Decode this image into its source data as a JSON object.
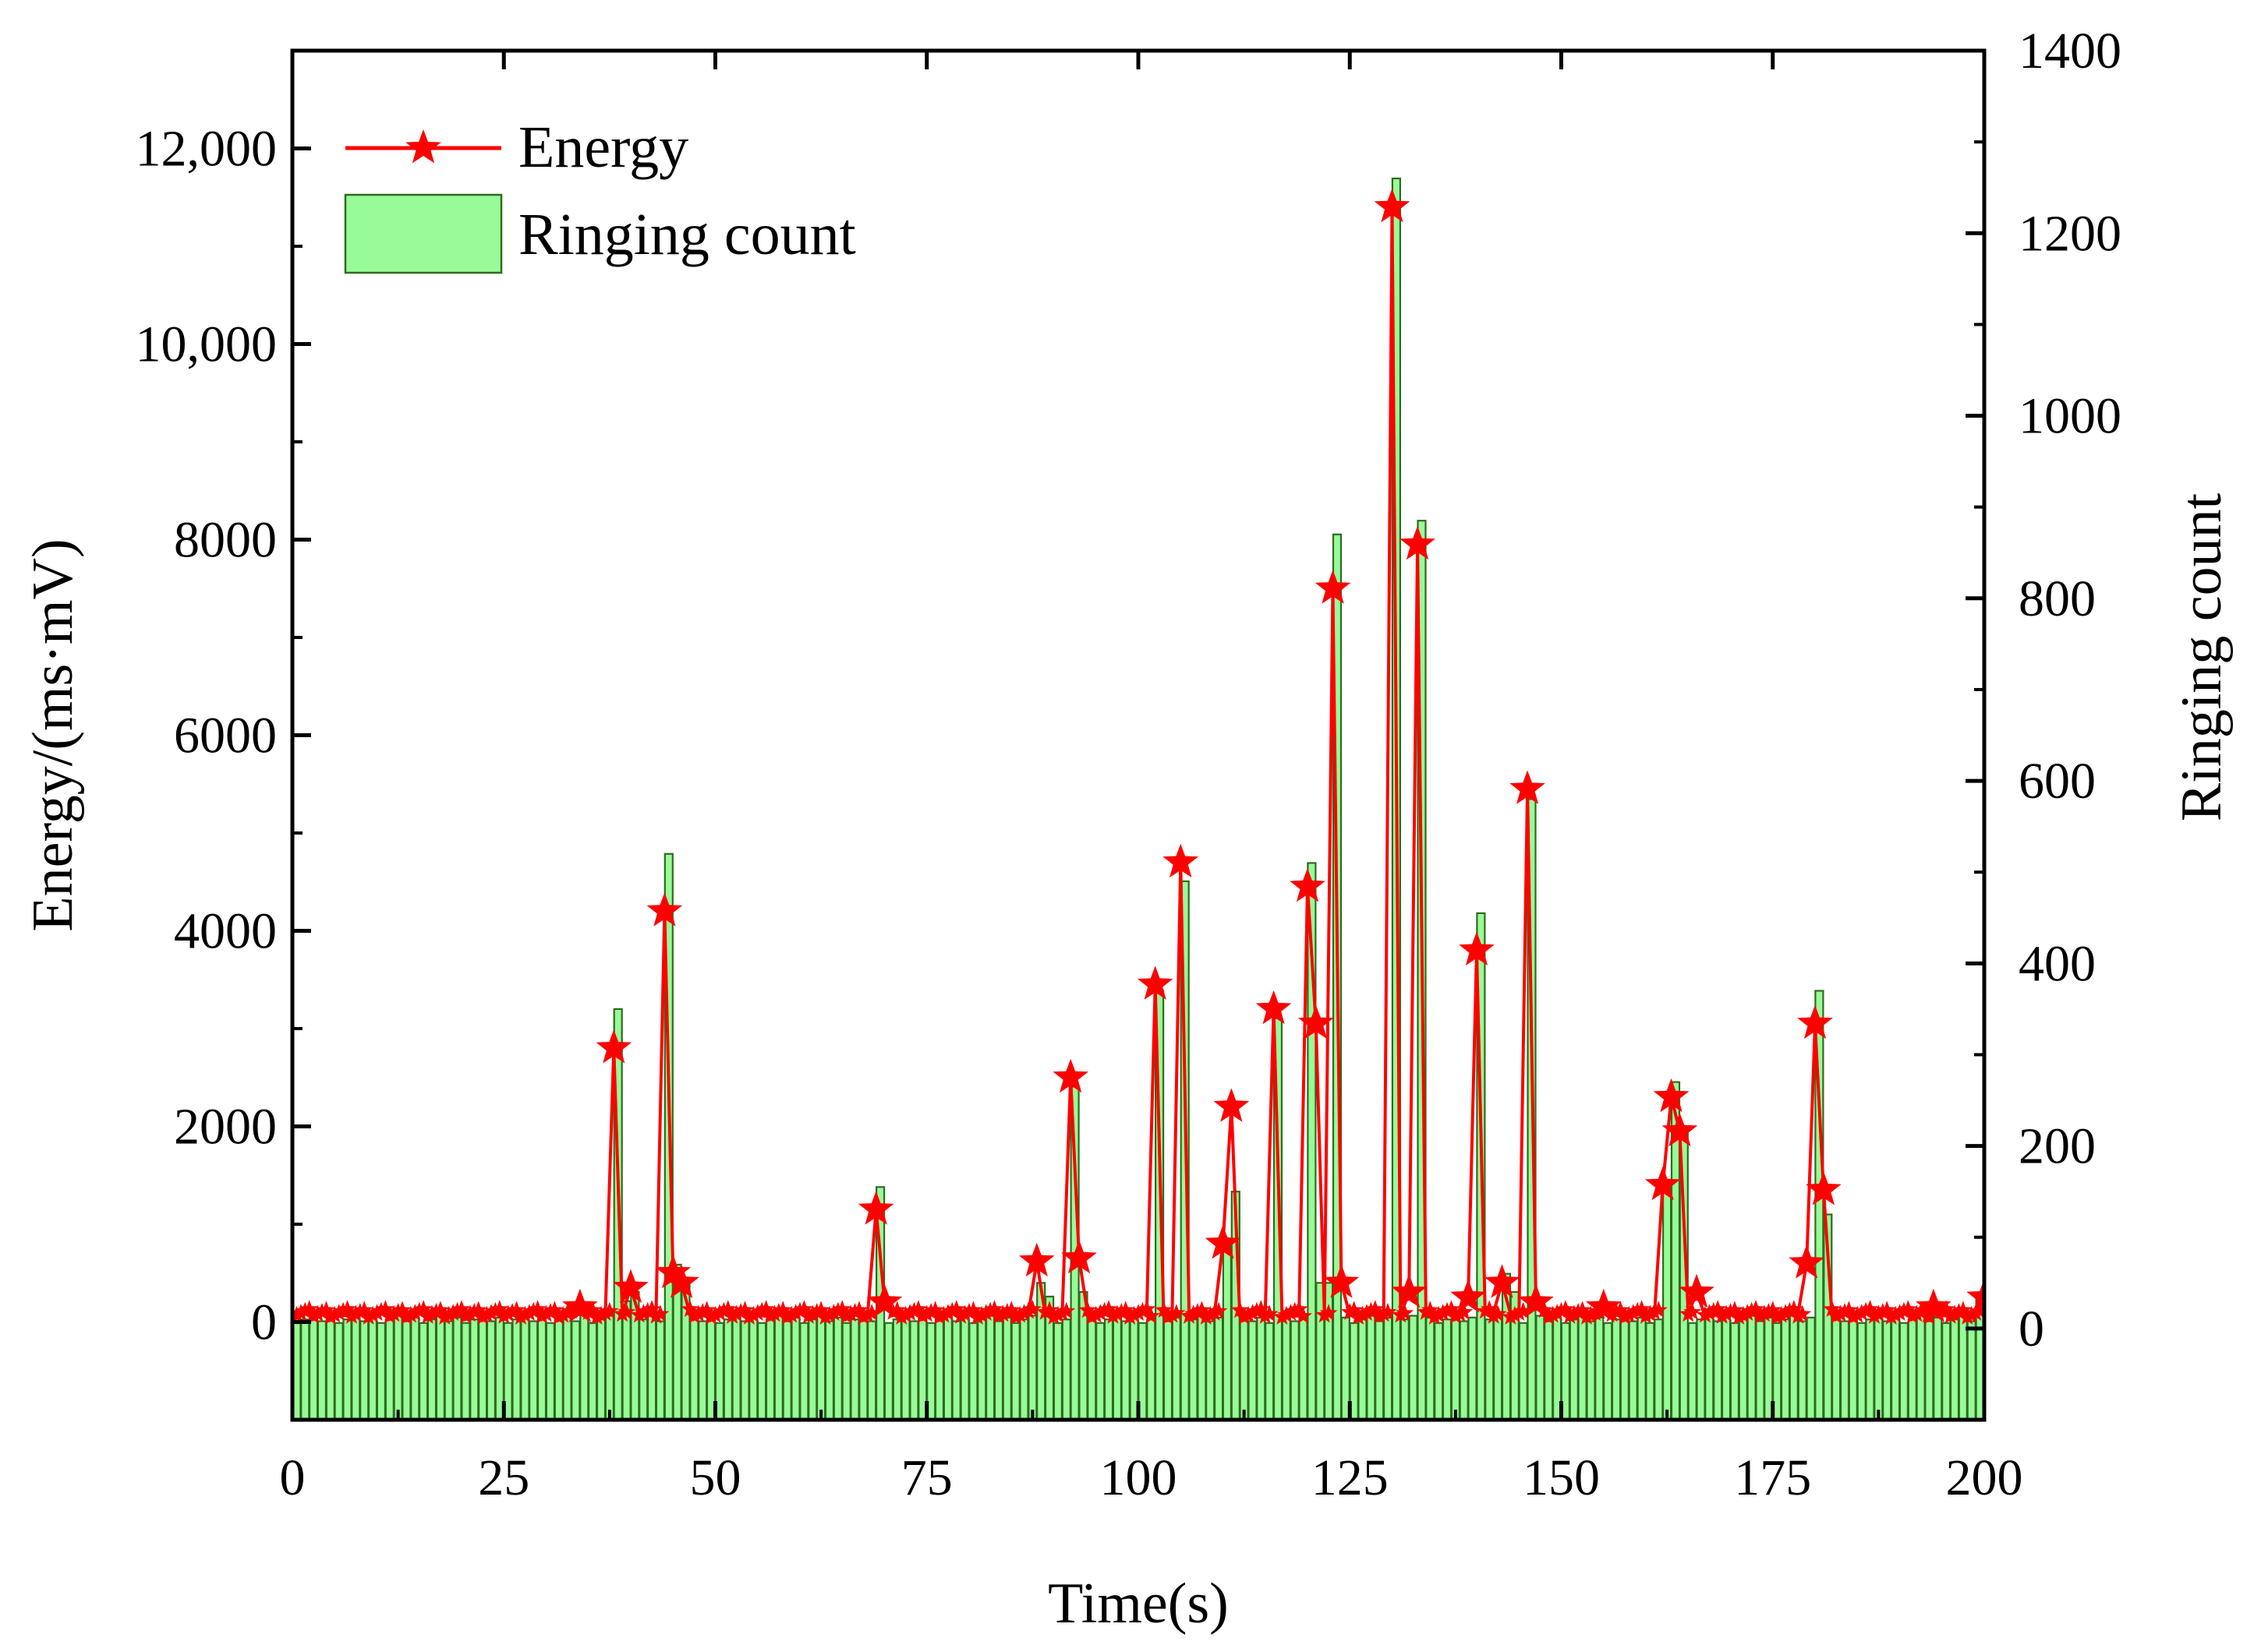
{
  "chart_data": {
    "type": "bar+line",
    "xlabel": "Time(s)",
    "ylabel_left": "Energy/(ms·mV)",
    "ylabel_right": "Ringing count",
    "xlim": [
      0,
      200
    ],
    "ylim_left": [
      -1000,
      13000
    ],
    "ylim_right": [
      -100,
      1400
    ],
    "x_ticks": [
      0,
      25,
      50,
      75,
      100,
      125,
      150,
      175,
      200
    ],
    "x_tick_labels": [
      "0",
      "25",
      "50",
      "75",
      "100",
      "125",
      "150",
      "175",
      "200"
    ],
    "y_left_ticks": [
      0,
      2000,
      4000,
      6000,
      8000,
      10000,
      12000
    ],
    "y_left_tick_labels": [
      "0",
      "2000",
      "4000",
      "6000",
      "8000",
      "10,000",
      "12,000"
    ],
    "y_right_ticks": [
      0,
      200,
      400,
      600,
      800,
      1000,
      1200,
      1400
    ],
    "y_right_tick_labels": [
      "0",
      "200",
      "400",
      "600",
      "800",
      "1000",
      "1200",
      "1400"
    ],
    "legend": {
      "position": "top-left",
      "entries": [
        "Energy",
        "Ringing count"
      ]
    },
    "colors": {
      "energy": "#ff0000",
      "bar_fill": "#98fb98",
      "bar_edge": "#2e6b1e",
      "axis": "#000000"
    },
    "baseline": {
      "energy": 80,
      "ringing": 10
    },
    "series": [
      {
        "name": "Energy",
        "axis": "left",
        "style": "line-star",
        "peaks": [
          {
            "x": 34,
            "y": 150
          },
          {
            "x": 38,
            "y": 2800
          },
          {
            "x": 40,
            "y": 350
          },
          {
            "x": 44,
            "y": 4200
          },
          {
            "x": 45,
            "y": 500
          },
          {
            "x": 46,
            "y": 400
          },
          {
            "x": 69,
            "y": 1150
          },
          {
            "x": 70,
            "y": 200
          },
          {
            "x": 88,
            "y": 620
          },
          {
            "x": 92,
            "y": 2500
          },
          {
            "x": 93,
            "y": 650
          },
          {
            "x": 102,
            "y": 3450
          },
          {
            "x": 105,
            "y": 4700
          },
          {
            "x": 110,
            "y": 800
          },
          {
            "x": 111,
            "y": 2200
          },
          {
            "x": 116,
            "y": 3200
          },
          {
            "x": 120,
            "y": 4450
          },
          {
            "x": 121,
            "y": 3050
          },
          {
            "x": 123,
            "y": 7500
          },
          {
            "x": 124,
            "y": 400
          },
          {
            "x": 130,
            "y": 11400
          },
          {
            "x": 132,
            "y": 300
          },
          {
            "x": 133,
            "y": 7950
          },
          {
            "x": 139,
            "y": 250
          },
          {
            "x": 140,
            "y": 3800
          },
          {
            "x": 143,
            "y": 400
          },
          {
            "x": 146,
            "y": 5450
          },
          {
            "x": 147,
            "y": 200
          },
          {
            "x": 155,
            "y": 150
          },
          {
            "x": 162,
            "y": 1400
          },
          {
            "x": 163,
            "y": 2300
          },
          {
            "x": 164,
            "y": 1950
          },
          {
            "x": 166,
            "y": 300
          },
          {
            "x": 179,
            "y": 600
          },
          {
            "x": 180,
            "y": 3050
          },
          {
            "x": 181,
            "y": 1350
          },
          {
            "x": 194,
            "y": 150
          },
          {
            "x": 200,
            "y": 250
          }
        ]
      },
      {
        "name": "Ringing count",
        "axis": "right",
        "style": "bar",
        "peaks": [
          {
            "x": 34,
            "y": 25
          },
          {
            "x": 38,
            "y": 350
          },
          {
            "x": 39,
            "y": 30
          },
          {
            "x": 40,
            "y": 40
          },
          {
            "x": 44,
            "y": 520
          },
          {
            "x": 45,
            "y": 70
          },
          {
            "x": 46,
            "y": 55
          },
          {
            "x": 69,
            "y": 155
          },
          {
            "x": 88,
            "y": 50
          },
          {
            "x": 89,
            "y": 35
          },
          {
            "x": 92,
            "y": 265
          },
          {
            "x": 93,
            "y": 40
          },
          {
            "x": 102,
            "y": 370
          },
          {
            "x": 105,
            "y": 490
          },
          {
            "x": 110,
            "y": 90
          },
          {
            "x": 111,
            "y": 150
          },
          {
            "x": 116,
            "y": 340
          },
          {
            "x": 120,
            "y": 510
          },
          {
            "x": 121,
            "y": 50
          },
          {
            "x": 122,
            "y": 50
          },
          {
            "x": 123,
            "y": 870
          },
          {
            "x": 130,
            "y": 1260
          },
          {
            "x": 133,
            "y": 885
          },
          {
            "x": 140,
            "y": 455
          },
          {
            "x": 143,
            "y": 60
          },
          {
            "x": 144,
            "y": 40
          },
          {
            "x": 146,
            "y": 580
          },
          {
            "x": 162,
            "y": 160
          },
          {
            "x": 163,
            "y": 270
          },
          {
            "x": 164,
            "y": 220
          },
          {
            "x": 180,
            "y": 370
          },
          {
            "x": 181,
            "y": 125
          },
          {
            "x": 199,
            "y": 35
          }
        ]
      }
    ]
  }
}
